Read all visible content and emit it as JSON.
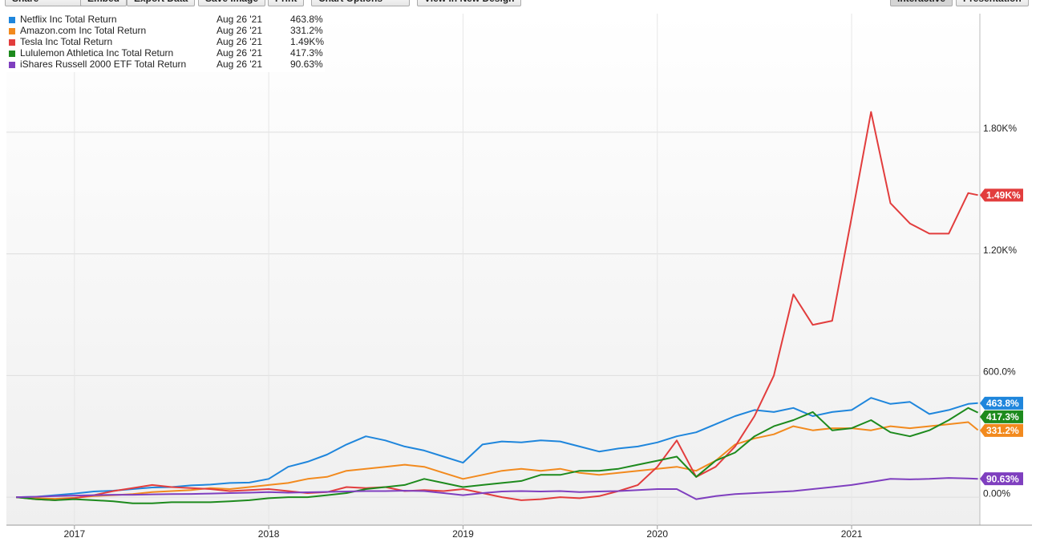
{
  "toolbar": [
    "Share",
    "Embed",
    "Export Data",
    "Save Image",
    "Print",
    "Chart Options",
    "View in New Design",
    "Interactive",
    "Presentation"
  ],
  "chart_data": {
    "type": "line",
    "last_date": "Aug 26 '21",
    "x": [
      2016.7,
      2016.8,
      2016.9,
      2017.0,
      2017.1,
      2017.2,
      2017.3,
      2017.4,
      2017.5,
      2017.6,
      2017.7,
      2017.8,
      2017.9,
      2018.0,
      2018.1,
      2018.2,
      2018.3,
      2018.4,
      2018.5,
      2018.6,
      2018.7,
      2018.8,
      2018.9,
      2019.0,
      2019.1,
      2019.2,
      2019.3,
      2019.4,
      2019.5,
      2019.6,
      2019.7,
      2019.8,
      2019.9,
      2020.0,
      2020.1,
      2020.2,
      2020.3,
      2020.4,
      2020.5,
      2020.6,
      2020.7,
      2020.8,
      2020.9,
      2021.0,
      2021.1,
      2021.2,
      2021.3,
      2021.4,
      2021.5,
      2021.6,
      2021.65
    ],
    "xlim": [
      2016.65,
      2021.66
    ],
    "xticks": [
      2017,
      2018,
      2019,
      2020,
      2021
    ],
    "ylim": [
      -138,
      2385
    ],
    "yticks": [
      {
        "value": 0,
        "label": "0.00%"
      },
      {
        "value": 600,
        "label": "600.0%"
      },
      {
        "value": 1200,
        "label": "1.20K%"
      },
      {
        "value": 1800,
        "label": "1.80K%"
      }
    ],
    "grid": true,
    "series": [
      {
        "name": "Netflix Inc Total Return",
        "color": "#1f86dc",
        "last_label": "463.8%",
        "values": [
          0,
          2,
          10,
          18,
          28,
          32,
          40,
          48,
          50,
          58,
          62,
          70,
          72,
          90,
          150,
          175,
          210,
          260,
          300,
          280,
          250,
          230,
          200,
          170,
          260,
          275,
          270,
          280,
          275,
          250,
          225,
          240,
          250,
          270,
          300,
          320,
          360,
          400,
          430,
          420,
          440,
          400,
          420,
          430,
          490,
          460,
          470,
          410,
          430,
          460,
          463.8
        ]
      },
      {
        "name": "Amazon.com Inc Total Return",
        "color": "#f28a1e",
        "last_label": "331.2%",
        "values": [
          0,
          -5,
          -8,
          -3,
          5,
          10,
          15,
          25,
          30,
          35,
          45,
          40,
          50,
          60,
          70,
          90,
          100,
          130,
          140,
          150,
          160,
          150,
          120,
          90,
          110,
          130,
          140,
          130,
          140,
          120,
          110,
          120,
          130,
          140,
          150,
          130,
          180,
          260,
          290,
          310,
          350,
          330,
          340,
          340,
          330,
          350,
          340,
          350,
          360,
          370,
          331.2
        ]
      },
      {
        "name": "Tesla Inc Total Return",
        "color": "#e23d3d",
        "last_label": "1.49K%",
        "values": [
          0,
          -10,
          -15,
          -5,
          10,
          30,
          45,
          60,
          50,
          45,
          40,
          30,
          35,
          40,
          30,
          20,
          25,
          50,
          45,
          50,
          30,
          35,
          30,
          40,
          20,
          0,
          -15,
          -10,
          0,
          -5,
          5,
          30,
          60,
          150,
          280,
          100,
          150,
          250,
          400,
          600,
          1000,
          850,
          870,
          1380,
          1900,
          1450,
          1350,
          1300,
          1300,
          1500,
          1490
        ]
      },
      {
        "name": "Lululemon Athletica Inc Total Return",
        "color": "#1d8a1d",
        "last_label": "417.3%",
        "values": [
          0,
          -10,
          -15,
          -10,
          -15,
          -20,
          -30,
          -30,
          -25,
          -25,
          -25,
          -20,
          -15,
          -5,
          0,
          0,
          10,
          20,
          40,
          50,
          60,
          90,
          70,
          50,
          60,
          70,
          80,
          110,
          110,
          130,
          130,
          140,
          160,
          180,
          200,
          100,
          180,
          220,
          300,
          350,
          380,
          420,
          330,
          340,
          380,
          320,
          300,
          330,
          380,
          440,
          417.3
        ]
      },
      {
        "name": "iShares Russell 2000 ETF Total Return",
        "color": "#7f3fbf",
        "last_label": "90.63%",
        "values": [
          0,
          2,
          5,
          8,
          10,
          12,
          12,
          14,
          15,
          16,
          18,
          20,
          22,
          25,
          22,
          24,
          26,
          28,
          30,
          30,
          32,
          30,
          20,
          10,
          20,
          28,
          30,
          28,
          30,
          25,
          28,
          30,
          35,
          40,
          40,
          -10,
          5,
          15,
          20,
          25,
          30,
          40,
          50,
          60,
          75,
          90,
          88,
          90,
          95,
          92,
          90.63
        ]
      }
    ]
  }
}
